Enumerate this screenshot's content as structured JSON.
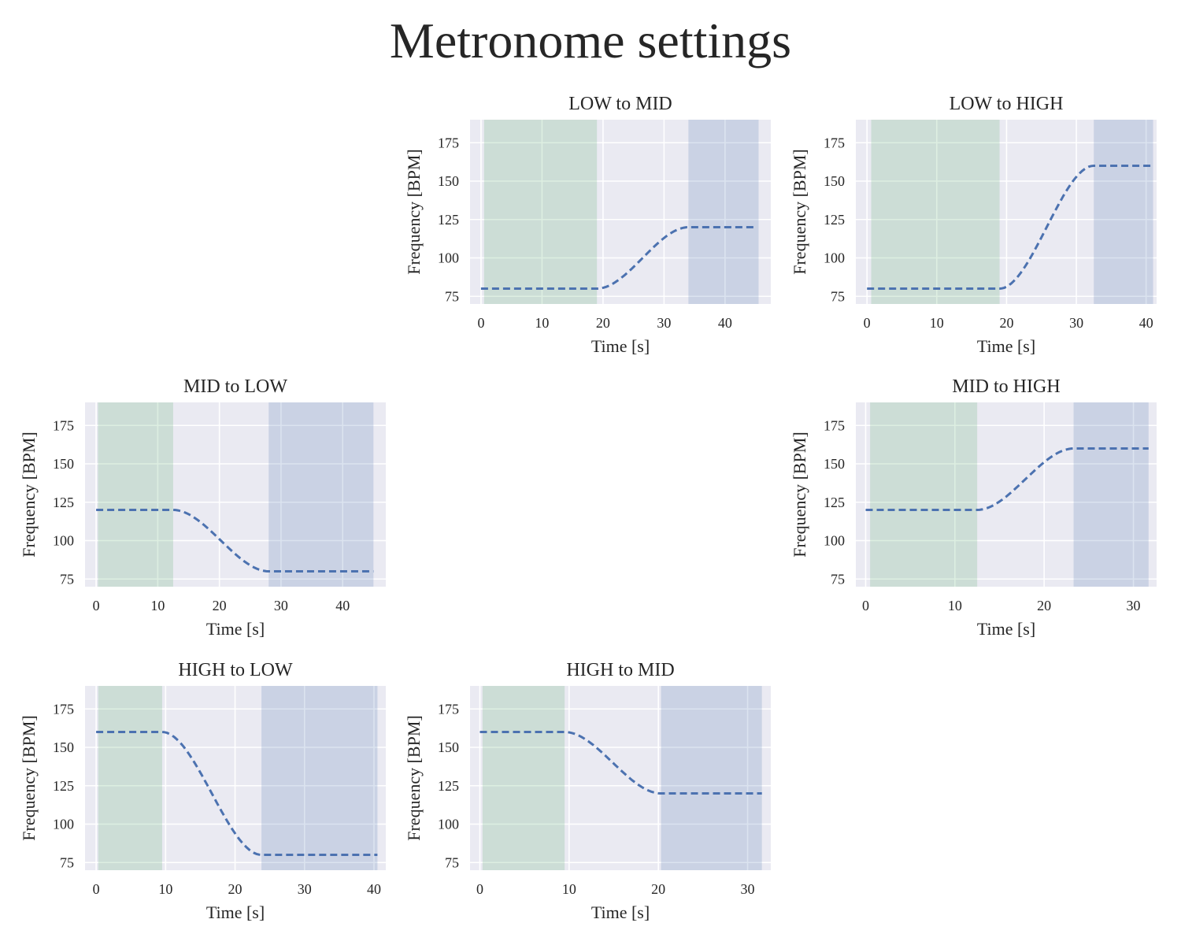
{
  "figure": {
    "title": "Metronome settings"
  },
  "colors": {
    "plot_bg": "#eaeaf2",
    "grid": "#ffffff",
    "curve": "#4c72b0",
    "start_band": "#55a868",
    "end_band": "#4c72b0"
  },
  "chart_data": [
    {
      "type": "line",
      "title": "LOW to MID",
      "grid_pos": [
        0,
        1
      ],
      "xlabel": "Time [s]",
      "ylabel": "Frequency [BPM]",
      "xlim": [
        -1.8,
        47.5
      ],
      "ylim": [
        70,
        190
      ],
      "xticks": [
        0,
        10,
        20,
        30,
        40
      ],
      "yticks": [
        75,
        100,
        125,
        150,
        175
      ],
      "from_bpm": 80,
      "to_bpm": 120,
      "line_x": [
        0,
        19,
        34,
        45
      ],
      "bands": [
        {
          "name": "start",
          "range": [
            0.5,
            19
          ]
        },
        {
          "name": "end",
          "range": [
            34,
            45.5
          ]
        }
      ]
    },
    {
      "type": "line",
      "title": "LOW to HIGH",
      "grid_pos": [
        0,
        2
      ],
      "xlabel": "Time [s]",
      "ylabel": "Frequency [BPM]",
      "xlim": [
        -1.6,
        41.5
      ],
      "ylim": [
        70,
        190
      ],
      "xticks": [
        0,
        10,
        20,
        30,
        40
      ],
      "yticks": [
        75,
        100,
        125,
        150,
        175
      ],
      "from_bpm": 80,
      "to_bpm": 160,
      "line_x": [
        0,
        19,
        32.5,
        41
      ],
      "bands": [
        {
          "name": "start",
          "range": [
            0.6,
            19
          ]
        },
        {
          "name": "end",
          "range": [
            32.5,
            41
          ]
        }
      ]
    },
    {
      "type": "line",
      "title": "MID to LOW",
      "grid_pos": [
        1,
        0
      ],
      "xlabel": "Time [s]",
      "ylabel": "Frequency [BPM]",
      "xlim": [
        -1.8,
        47.0
      ],
      "ylim": [
        70,
        190
      ],
      "xticks": [
        0,
        10,
        20,
        30,
        40
      ],
      "yticks": [
        75,
        100,
        125,
        150,
        175
      ],
      "from_bpm": 120,
      "to_bpm": 80,
      "line_x": [
        0,
        12.5,
        28,
        45
      ],
      "bands": [
        {
          "name": "start",
          "range": [
            0.3,
            12.5
          ]
        },
        {
          "name": "end",
          "range": [
            28,
            45
          ]
        }
      ]
    },
    {
      "type": "line",
      "title": "MID to HIGH",
      "grid_pos": [
        1,
        2
      ],
      "xlabel": "Time [s]",
      "ylabel": "Frequency [BPM]",
      "xlim": [
        -1.1,
        32.6
      ],
      "ylim": [
        70,
        190
      ],
      "xticks": [
        0,
        10,
        20,
        30
      ],
      "yticks": [
        75,
        100,
        125,
        150,
        175
      ],
      "from_bpm": 120,
      "to_bpm": 160,
      "line_x": [
        0,
        12.5,
        23.3,
        31.7
      ],
      "bands": [
        {
          "name": "start",
          "range": [
            0.5,
            12.5
          ]
        },
        {
          "name": "end",
          "range": [
            23.3,
            31.7
          ]
        }
      ]
    },
    {
      "type": "line",
      "title": "HIGH to LOW",
      "grid_pos": [
        2,
        0
      ],
      "xlabel": "Time [s]",
      "ylabel": "Frequency [BPM]",
      "xlim": [
        -1.6,
        41.7
      ],
      "ylim": [
        70,
        190
      ],
      "xticks": [
        0,
        10,
        20,
        30,
        40
      ],
      "yticks": [
        75,
        100,
        125,
        150,
        175
      ],
      "from_bpm": 160,
      "to_bpm": 80,
      "line_x": [
        0,
        9.5,
        23.8,
        40.5
      ],
      "bands": [
        {
          "name": "start",
          "range": [
            0.3,
            9.5
          ]
        },
        {
          "name": "end",
          "range": [
            23.8,
            40.5
          ]
        }
      ]
    },
    {
      "type": "line",
      "title": "HIGH to MID",
      "grid_pos": [
        2,
        1
      ],
      "xlabel": "Time [s]",
      "ylabel": "Frequency [BPM]",
      "xlim": [
        -1.1,
        32.6
      ],
      "ylim": [
        70,
        190
      ],
      "xticks": [
        0,
        10,
        20,
        30
      ],
      "yticks": [
        75,
        100,
        125,
        150,
        175
      ],
      "from_bpm": 160,
      "to_bpm": 120,
      "line_x": [
        0,
        9.5,
        20.3,
        31.6
      ],
      "bands": [
        {
          "name": "start",
          "range": [
            0.3,
            9.5
          ]
        },
        {
          "name": "end",
          "range": [
            20.3,
            31.6
          ]
        }
      ]
    }
  ]
}
